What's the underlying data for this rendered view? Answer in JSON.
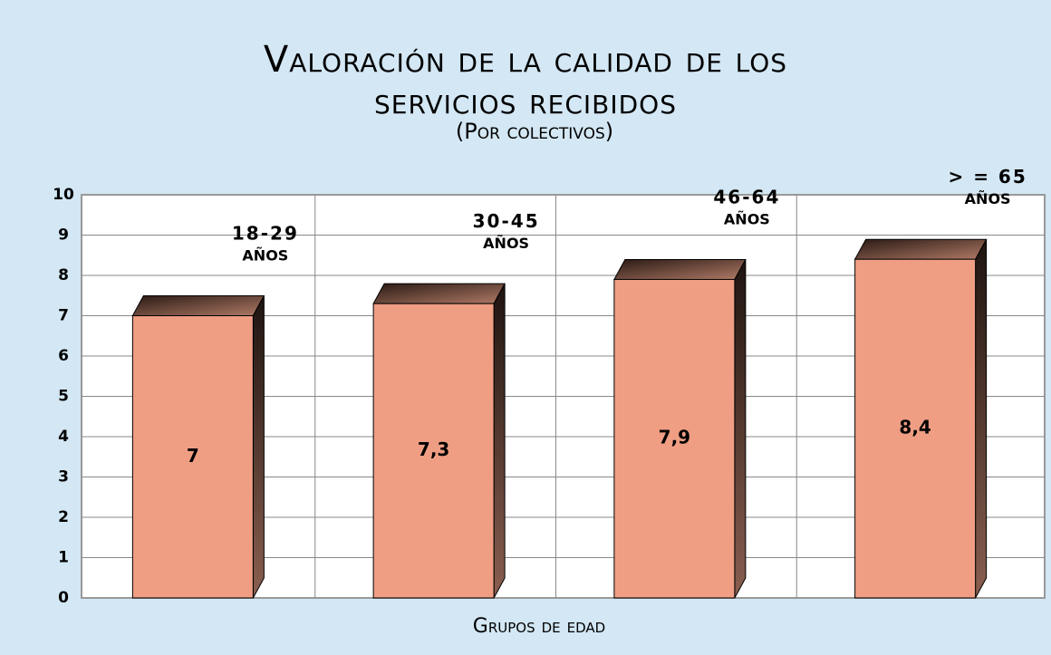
{
  "chart_data": {
    "type": "bar",
    "title": "Valoración de la calidad de los servicios recibidos",
    "subtitle": "(Por colectivos)",
    "x_label": "Grupos de edad",
    "categories": [
      "18-29\nAÑOS",
      "30-45\nAÑOS",
      "46-64\nAÑOS",
      "> = 65\nAÑOS"
    ],
    "values": [
      7,
      7.3,
      7.9,
      8.4
    ],
    "value_labels": [
      "7",
      "7,3",
      "7,9",
      "8,4"
    ],
    "color": "#ef9e84",
    "ylim": [
      0,
      10
    ],
    "yticks": [
      0,
      1,
      2,
      3,
      4,
      5,
      6,
      7,
      8,
      9,
      10
    ],
    "grid": true
  }
}
